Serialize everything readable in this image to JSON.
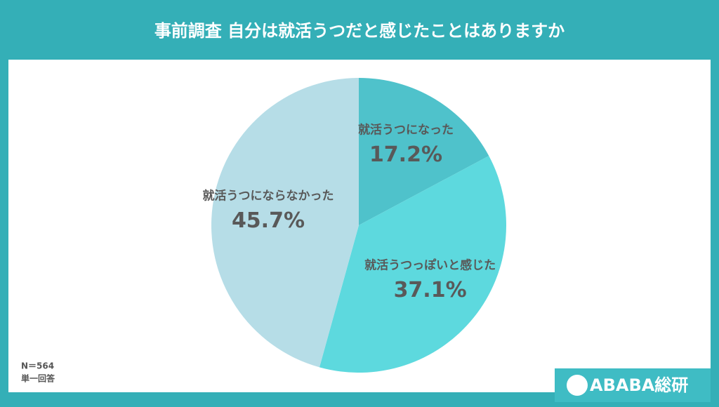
{
  "chart_data": {
    "type": "pie",
    "title": "事前調査  自分は就活うつだと感じたことはありますか",
    "categories": [
      "就活うつになった",
      "就活うつっぽいと感じた",
      "就活うつにならなかった"
    ],
    "values": [
      17.2,
      37.1,
      45.7
    ],
    "value_labels": [
      "17.2%",
      "37.1%",
      "45.7%"
    ],
    "colors": [
      "#4fc2cb",
      "#5dd9de",
      "#b6dde7"
    ]
  },
  "footnotes": [
    "N＝564",
    "単一回答"
  ],
  "logo": "ABABA総研"
}
